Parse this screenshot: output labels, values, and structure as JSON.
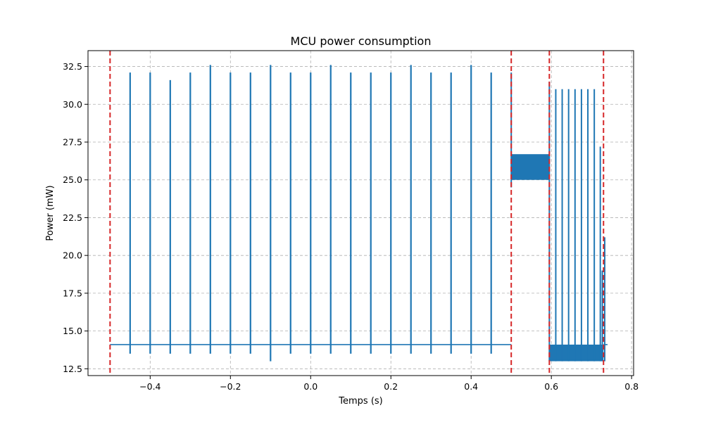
{
  "chart_data": {
    "type": "line",
    "title": "MCU power consumption",
    "xlabel": "Temps (s)",
    "ylabel": "Power (mW)",
    "xlim": [
      -0.555,
      0.805
    ],
    "ylim": [
      12.05,
      33.55
    ],
    "grid": true,
    "colors": {
      "series": "#1f77b4",
      "markers": "#d62728"
    },
    "x_ticks": [
      {
        "value": -0.4,
        "label": "−0.4"
      },
      {
        "value": -0.2,
        "label": "−0.2"
      },
      {
        "value": 0.0,
        "label": "0.0"
      },
      {
        "value": 0.2,
        "label": "0.2"
      },
      {
        "value": 0.4,
        "label": "0.4"
      },
      {
        "value": 0.6,
        "label": "0.6"
      },
      {
        "value": 0.8,
        "label": "0.8"
      }
    ],
    "y_ticks": [
      {
        "value": 12.5,
        "label": "12.5"
      },
      {
        "value": 15.0,
        "label": "15.0"
      },
      {
        "value": 17.5,
        "label": "17.5"
      },
      {
        "value": 20.0,
        "label": "20.0"
      },
      {
        "value": 22.5,
        "label": "22.5"
      },
      {
        "value": 25.0,
        "label": "25.0"
      },
      {
        "value": 27.5,
        "label": "27.5"
      },
      {
        "value": 30.0,
        "label": "30.0"
      },
      {
        "value": 32.5,
        "label": "32.5"
      }
    ],
    "vertical_markers": [
      -0.5,
      0.5,
      0.595,
      0.73
    ],
    "series": [
      {
        "baseline": 14.1,
        "segment_start": -0.5,
        "segment_end": 0.5,
        "spikes": [
          {
            "x": -0.45,
            "peak": 32.1,
            "dip": 13.5
          },
          {
            "x": -0.4,
            "peak": 32.1,
            "dip": 13.5
          },
          {
            "x": -0.35,
            "peak": 31.6,
            "dip": 13.5
          },
          {
            "x": -0.3,
            "peak": 32.1,
            "dip": 13.5
          },
          {
            "x": -0.25,
            "peak": 32.6,
            "dip": 13.5
          },
          {
            "x": -0.2,
            "peak": 32.1,
            "dip": 13.5
          },
          {
            "x": -0.15,
            "peak": 32.1,
            "dip": 13.5
          },
          {
            "x": -0.1,
            "peak": 32.6,
            "dip": 13.0
          },
          {
            "x": -0.05,
            "peak": 32.1,
            "dip": 13.5
          },
          {
            "x": 0.0,
            "peak": 32.1,
            "dip": 13.5
          },
          {
            "x": 0.05,
            "peak": 32.6,
            "dip": 13.5
          },
          {
            "x": 0.1,
            "peak": 32.1,
            "dip": 13.5
          },
          {
            "x": 0.15,
            "peak": 32.1,
            "dip": 13.5
          },
          {
            "x": 0.2,
            "peak": 32.1,
            "dip": 13.5
          },
          {
            "x": 0.25,
            "peak": 32.6,
            "dip": 13.5
          },
          {
            "x": 0.3,
            "peak": 32.1,
            "dip": 13.5
          },
          {
            "x": 0.35,
            "peak": 32.1,
            "dip": 13.5
          },
          {
            "x": 0.4,
            "peak": 32.6,
            "dip": 13.5
          },
          {
            "x": 0.45,
            "peak": 32.1,
            "dip": 13.5
          }
        ],
        "block_1": {
          "x_start": 0.5,
          "x_end": 0.595,
          "low": 25.0,
          "high": 26.7,
          "entry_peak": 32.1,
          "entry_dip": 24.5
        },
        "block_2": {
          "x_start": 0.595,
          "x_end": 0.73,
          "low": 13.0,
          "high": 14.1,
          "entry_peak": 31.5
        },
        "block_2_spikes": [
          {
            "x": 0.611,
            "peak": 31.0
          },
          {
            "x": 0.627,
            "peak": 31.0
          },
          {
            "x": 0.643,
            "peak": 31.0
          },
          {
            "x": 0.659,
            "peak": 31.0
          },
          {
            "x": 0.675,
            "peak": 31.0
          },
          {
            "x": 0.691,
            "peak": 31.0
          },
          {
            "x": 0.707,
            "peak": 31.0
          },
          {
            "x": 0.722,
            "peak": 27.2
          },
          {
            "x": 0.727,
            "peak": 19.0
          },
          {
            "x": 0.733,
            "peak": 21.2
          }
        ],
        "tail": {
          "x_start": 0.73,
          "x_end": 0.74,
          "value": 14.1
        }
      }
    ]
  }
}
